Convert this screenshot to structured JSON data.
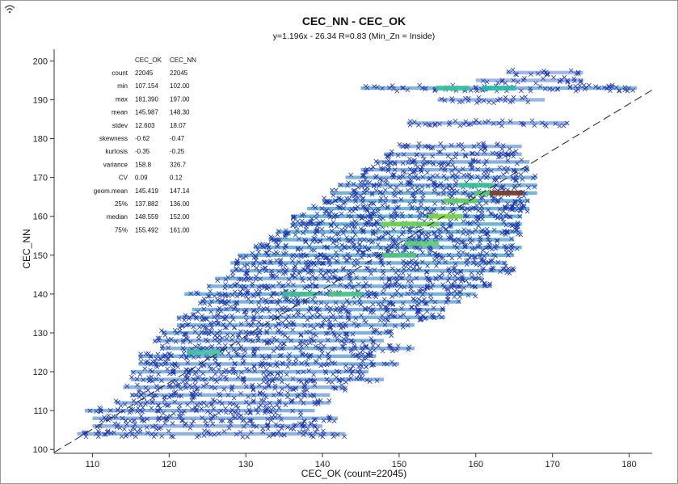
{
  "colors": {
    "cross": "#1f37a8",
    "heat_low": "#1a3fb5",
    "heat_mid": "#20b7c0",
    "heat_high": "#8fdc2e",
    "heat_peak": "#7a3b2a",
    "axis": "#333333",
    "trend_line": "#222222"
  },
  "icons": {
    "corner": "wifi-icon"
  },
  "chart_data": {
    "type": "scatter",
    "title": "CEC_NN - CEC_OK",
    "subtitle": "y=1.196x - 26.34  R=0.83  (Min_Zn = Inside)",
    "xlabel": "CEC_OK (count=22045)",
    "ylabel": "CEC_NN",
    "xlim": [
      105,
      183
    ],
    "ylim": [
      99,
      203
    ],
    "x_ticks": [
      110,
      120,
      130,
      140,
      150,
      160,
      170,
      180
    ],
    "y_ticks": [
      100,
      110,
      120,
      130,
      140,
      150,
      160,
      170,
      180,
      190,
      200
    ],
    "regression": {
      "slope": 1.196,
      "intercept": -26.34,
      "r": 0.83,
      "style": "dashed"
    },
    "point_marker": "x",
    "grid": false,
    "stats_table": {
      "headers": [
        "CEC_OK",
        "CEC_NN"
      ],
      "rows": [
        {
          "label": "count",
          "ok": "22045",
          "nn": "22045"
        },
        {
          "label": "min",
          "ok": "107.154",
          "nn": "102.00"
        },
        {
          "label": "max",
          "ok": "181.390",
          "nn": "197.00"
        },
        {
          "label": "mean",
          "ok": "145.987",
          "nn": "148.30"
        },
        {
          "label": "stdev",
          "ok": "12.603",
          "nn": "18.07"
        },
        {
          "label": "skewness",
          "ok": "-0.62",
          "nn": "-0.47"
        },
        {
          "label": "kurtosis",
          "ok": "-0.35",
          "nn": "-0.25"
        },
        {
          "label": "variance",
          "ok": "158.8",
          "nn": "326.7"
        },
        {
          "label": "CV",
          "ok": "0.09",
          "nn": "0.12"
        },
        {
          "label": "geom.mean",
          "ok": "145.419",
          "nn": "147.14"
        },
        {
          "label": "25%",
          "ok": "137.882",
          "nn": "136.00"
        },
        {
          "label": "median",
          "ok": "148.559",
          "nn": "152.00"
        },
        {
          "label": "75%",
          "ok": "155.492",
          "nn": "161.00"
        }
      ]
    },
    "density_bands": [
      {
        "y": 104,
        "x_min": 108,
        "x_max": 143,
        "density": 0.3
      },
      {
        "y": 106,
        "x_min": 110,
        "x_max": 140,
        "density": 0.28
      },
      {
        "y": 108,
        "x_min": 110,
        "x_max": 142,
        "density": 0.34
      },
      {
        "y": 110,
        "x_min": 109,
        "x_max": 139,
        "density": 0.4
      },
      {
        "y": 112,
        "x_min": 113,
        "x_max": 141,
        "density": 0.32
      },
      {
        "y": 114,
        "x_min": 115,
        "x_max": 141,
        "density": 0.34
      },
      {
        "y": 116,
        "x_min": 114,
        "x_max": 143,
        "density": 0.33
      },
      {
        "y": 118,
        "x_min": 115,
        "x_max": 148,
        "density": 0.36
      },
      {
        "y": 120,
        "x_min": 115,
        "x_max": 146,
        "density": 0.38
      },
      {
        "y": 122,
        "x_min": 116,
        "x_max": 150,
        "density": 0.4
      },
      {
        "y": 124,
        "x_min": 116,
        "x_max": 147,
        "density": 0.5
      },
      {
        "y": 126,
        "x_min": 119,
        "x_max": 152,
        "density": 0.4
      },
      {
        "y": 128,
        "x_min": 118,
        "x_max": 148,
        "density": 0.4
      },
      {
        "y": 130,
        "x_min": 119,
        "x_max": 149,
        "density": 0.44
      },
      {
        "y": 132,
        "x_min": 121,
        "x_max": 152,
        "density": 0.44
      },
      {
        "y": 134,
        "x_min": 121,
        "x_max": 156,
        "density": 0.46
      },
      {
        "y": 136,
        "x_min": 123,
        "x_max": 156,
        "density": 0.48
      },
      {
        "y": 138,
        "x_min": 124,
        "x_max": 158,
        "density": 0.48
      },
      {
        "y": 140,
        "x_min": 122,
        "x_max": 160,
        "density": 0.56
      },
      {
        "y": 142,
        "x_min": 125,
        "x_max": 162,
        "density": 0.46
      },
      {
        "y": 144,
        "x_min": 126,
        "x_max": 161,
        "density": 0.46
      },
      {
        "y": 146,
        "x_min": 128,
        "x_max": 165,
        "density": 0.5
      },
      {
        "y": 148,
        "x_min": 128,
        "x_max": 164,
        "density": 0.52
      },
      {
        "y": 150,
        "x_min": 129,
        "x_max": 165,
        "density": 0.58
      },
      {
        "y": 152,
        "x_min": 131,
        "x_max": 166,
        "density": 0.6
      },
      {
        "y": 154,
        "x_min": 133,
        "x_max": 165,
        "density": 0.62
      },
      {
        "y": 156,
        "x_min": 134,
        "x_max": 166,
        "density": 0.64
      },
      {
        "y": 158,
        "x_min": 136,
        "x_max": 166,
        "density": 0.66
      },
      {
        "y": 160,
        "x_min": 136,
        "x_max": 166,
        "density": 0.66
      },
      {
        "y": 162,
        "x_min": 138,
        "x_max": 167,
        "density": 0.62
      },
      {
        "y": 164,
        "x_min": 140,
        "x_max": 167,
        "density": 0.6
      },
      {
        "y": 166,
        "x_min": 141,
        "x_max": 168,
        "density": 0.54
      },
      {
        "y": 168,
        "x_min": 142,
        "x_max": 168,
        "density": 0.48
      },
      {
        "y": 170,
        "x_min": 143,
        "x_max": 168,
        "density": 0.44
      },
      {
        "y": 172,
        "x_min": 145,
        "x_max": 167,
        "density": 0.4
      },
      {
        "y": 174,
        "x_min": 147,
        "x_max": 167,
        "density": 0.36
      },
      {
        "y": 176,
        "x_min": 148,
        "x_max": 166,
        "density": 0.32
      },
      {
        "y": 178,
        "x_min": 150,
        "x_max": 166,
        "density": 0.28
      },
      {
        "y": 184,
        "x_min": 151,
        "x_max": 172,
        "density": 0.22
      },
      {
        "y": 190,
        "x_min": 155,
        "x_max": 169,
        "density": 0.18
      },
      {
        "y": 193,
        "x_min": 145,
        "x_max": 181,
        "density": 0.4
      },
      {
        "y": 195,
        "x_min": 160,
        "x_max": 174,
        "density": 0.14
      },
      {
        "y": 197,
        "x_min": 164,
        "x_max": 174,
        "density": 0.1
      }
    ],
    "hot_spots": [
      {
        "x": 124.5,
        "y": 125,
        "level": 0.6
      },
      {
        "x": 137,
        "y": 140,
        "level": 0.62
      },
      {
        "x": 143,
        "y": 140,
        "level": 0.66
      },
      {
        "x": 150,
        "y": 150,
        "level": 0.68
      },
      {
        "x": 153,
        "y": 153,
        "level": 0.72
      },
      {
        "x": 150,
        "y": 158,
        "level": 0.8
      },
      {
        "x": 156,
        "y": 160,
        "level": 0.84
      },
      {
        "x": 153,
        "y": 158,
        "level": 0.78
      },
      {
        "x": 158,
        "y": 164,
        "level": 0.74
      },
      {
        "x": 162,
        "y": 166,
        "level": 0.7
      },
      {
        "x": 164,
        "y": 166,
        "level": 1.0
      },
      {
        "x": 160,
        "y": 168,
        "level": 0.6
      },
      {
        "x": 157,
        "y": 193,
        "level": 0.6
      },
      {
        "x": 163,
        "y": 193,
        "level": 0.55
      }
    ]
  }
}
